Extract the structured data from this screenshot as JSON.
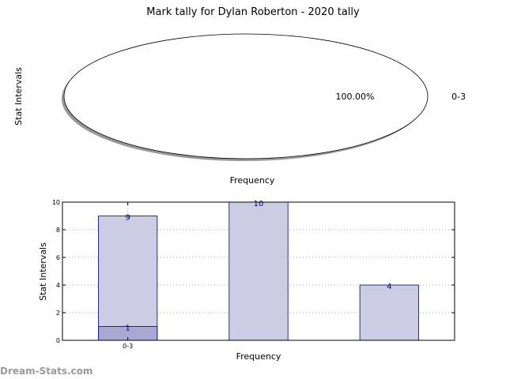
{
  "title": "Mark tally for Dylan Roberton - 2020 tally",
  "watermark": "Dream-Stats.com",
  "chart_data": [
    {
      "type": "pie",
      "ylabel": "Stat Intervals",
      "xlabel": "Frequency",
      "slices": [
        {
          "label": "0-3",
          "value": 100,
          "pct_label": "100.00%",
          "shadow": true
        }
      ],
      "colors": {
        "fill": "#ffffff",
        "edge": "#000000",
        "shadow": "#999999"
      }
    },
    {
      "type": "bar",
      "ylabel": "Stat Intervals",
      "xlabel": "Frequency",
      "ylim": [
        0,
        10
      ],
      "yticks": [
        "0",
        "2",
        "4",
        "6",
        "8",
        "10"
      ],
      "categories": [
        "0-3",
        "",
        ""
      ],
      "series": [
        {
          "values": [
            9,
            10,
            4
          ],
          "labels": [
            "9",
            "10",
            "4"
          ],
          "fill": "#ccccE5"
        },
        {
          "values": [
            1,
            null,
            null
          ],
          "labels": [
            "1",
            "",
            ""
          ],
          "fill": "#a8a8d3"
        }
      ],
      "grid": true,
      "colors": {
        "edge": "#000080",
        "label": "#000080",
        "grid": "#aaaaaa"
      }
    }
  ]
}
